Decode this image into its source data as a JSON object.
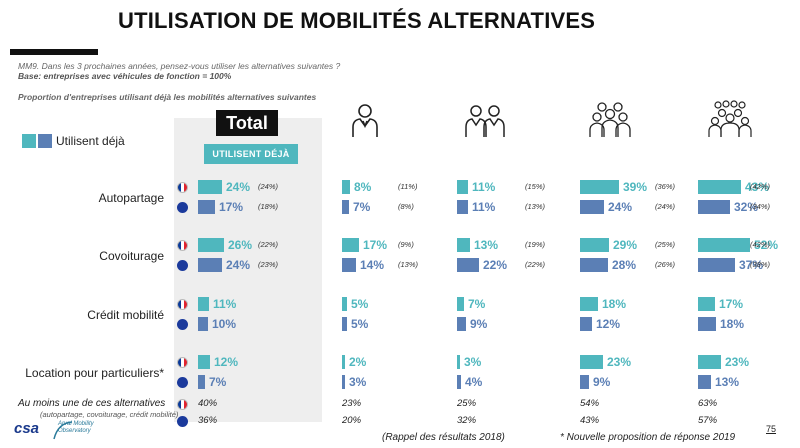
{
  "header": {
    "title": "UTILISATION DE MOBILITÉS ALTERNATIVES",
    "question": "MM9. Dans les 3 prochaines années, pensez-vous utiliser les alternatives suivantes ?",
    "base": "Base: entreprises avec véhicules de fonction = 100%",
    "proportion": "Proportion d'entreprises utilisant déjà les mobilités alternatives suivantes"
  },
  "legend": {
    "label": "Utilisent déjà"
  },
  "total_panel": {
    "label": "Total",
    "badge": "UTILISENT DÉJÀ"
  },
  "icons": [
    "person-icon",
    "two-people-icon",
    "group-icon",
    "large-group-icon"
  ],
  "colors": {
    "france": "#4fb7be",
    "europe": "#5b7fb5",
    "panel": "#eeeeee"
  },
  "chart_data": {
    "type": "bar",
    "orientation": "horizontal",
    "segments": [
      "Total",
      "person-icon",
      "two-people-icon",
      "group-icon",
      "large-group-icon"
    ],
    "series": [
      {
        "flag": "france"
      },
      {
        "flag": "europe"
      }
    ],
    "categories": [
      {
        "label": "Autopartage",
        "rows": [
          {
            "flag": "france",
            "values": [
              "24%",
              "8%",
              "11%",
              "39%",
              "43%"
            ],
            "numbers": [
              24,
              8,
              11,
              39,
              43
            ],
            "previous": [
              "(24%)",
              "(11%)",
              "(15%)",
              "(36%)",
              "(42%)"
            ]
          },
          {
            "flag": "europe",
            "values": [
              "17%",
              "7%",
              "11%",
              "24%",
              "32%"
            ],
            "numbers": [
              17,
              7,
              11,
              24,
              32
            ],
            "previous": [
              "(18%)",
              "(8%)",
              "(13%)",
              "(24%)",
              "(34%)"
            ]
          }
        ]
      },
      {
        "label": "Covoiturage",
        "rows": [
          {
            "flag": "france",
            "values": [
              "26%",
              "17%",
              "13%",
              "29%",
              "52%"
            ],
            "numbers": [
              26,
              17,
              13,
              29,
              52
            ],
            "previous": [
              "(22%)",
              "(9%)",
              "(19%)",
              "(25%)",
              "(42%)"
            ]
          },
          {
            "flag": "europe",
            "values": [
              "24%",
              "14%",
              "22%",
              "28%",
              "37%"
            ],
            "numbers": [
              24,
              14,
              22,
              28,
              37
            ],
            "previous": [
              "(23%)",
              "(13%)",
              "(22%)",
              "(26%)",
              "(38%)"
            ]
          }
        ]
      },
      {
        "label": "Crédit mobilité",
        "rows": [
          {
            "flag": "france",
            "values": [
              "11%",
              "5%",
              "7%",
              "18%",
              "17%"
            ],
            "numbers": [
              11,
              5,
              7,
              18,
              17
            ],
            "previous": [
              "",
              "",
              "",
              "",
              ""
            ]
          },
          {
            "flag": "europe",
            "values": [
              "10%",
              "5%",
              "9%",
              "12%",
              "18%"
            ],
            "numbers": [
              10,
              5,
              9,
              12,
              18
            ],
            "previous": [
              "",
              "",
              "",
              "",
              ""
            ]
          }
        ]
      },
      {
        "label": "Location pour particuliers*",
        "rows": [
          {
            "flag": "france",
            "values": [
              "12%",
              "2%",
              "3%",
              "23%",
              "23%"
            ],
            "numbers": [
              12,
              2,
              3,
              23,
              23
            ],
            "previous": [
              "",
              "",
              "",
              "",
              ""
            ]
          },
          {
            "flag": "europe",
            "values": [
              "7%",
              "3%",
              "4%",
              "9%",
              "13%"
            ],
            "numbers": [
              7,
              3,
              4,
              9,
              13
            ],
            "previous": [
              "",
              "",
              "",
              "",
              ""
            ]
          }
        ]
      }
    ],
    "at_least_one": {
      "label": "Au moins une de ces alternatives",
      "sublabel": "(autopartage, covoiturage, crédit mobilité)",
      "rows": [
        {
          "flag": "france",
          "values": [
            "40%",
            "23%",
            "25%",
            "54%",
            "63%"
          ]
        },
        {
          "flag": "europe",
          "values": [
            "36%",
            "20%",
            "32%",
            "43%",
            "57%"
          ]
        }
      ]
    }
  },
  "footer": {
    "recall": "(Rappel des résultats 2018)",
    "new_option": "* Nouvelle proposition de réponse 2019",
    "page": "75",
    "logo_csa": "csa",
    "logo_amo": "Arval Mobility Observatory"
  }
}
